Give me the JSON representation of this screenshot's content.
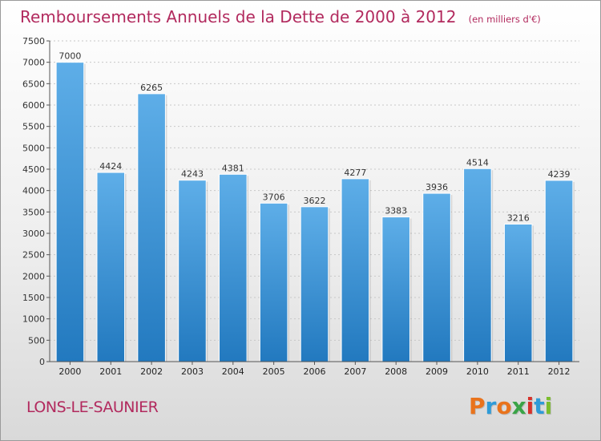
{
  "title": "Remboursements Annuels de la Dette de 2000 à 2012",
  "subtitle": "(en milliers d'€)",
  "place": "LONS-LE-SAUNIER",
  "brand": {
    "letters": [
      "P",
      "r",
      "o",
      "x",
      "i",
      "t",
      "i"
    ],
    "colors": [
      "#e9731c",
      "#2e9bd8",
      "#e9731c",
      "#3aa447",
      "#d6322b",
      "#2e9bd8",
      "#7bbd2d"
    ]
  },
  "colors": {
    "accent": "#b22a5e",
    "bar_top": "#5eaee8",
    "bar_bottom": "#2279bf"
  },
  "chart_data": {
    "type": "bar",
    "categories": [
      "2000",
      "2001",
      "2002",
      "2003",
      "2004",
      "2005",
      "2006",
      "2007",
      "2008",
      "2009",
      "2010",
      "2011",
      "2012"
    ],
    "values": [
      7000,
      4424,
      6265,
      4243,
      4381,
      3706,
      3622,
      4277,
      3383,
      3936,
      4514,
      3216,
      4239
    ],
    "ylim": [
      0,
      7500
    ],
    "yticks": [
      0,
      500,
      1000,
      1500,
      2000,
      2500,
      3000,
      3500,
      4000,
      4500,
      5000,
      5500,
      6000,
      6500,
      7000,
      7500
    ],
    "grid": true,
    "data_labels": true
  }
}
